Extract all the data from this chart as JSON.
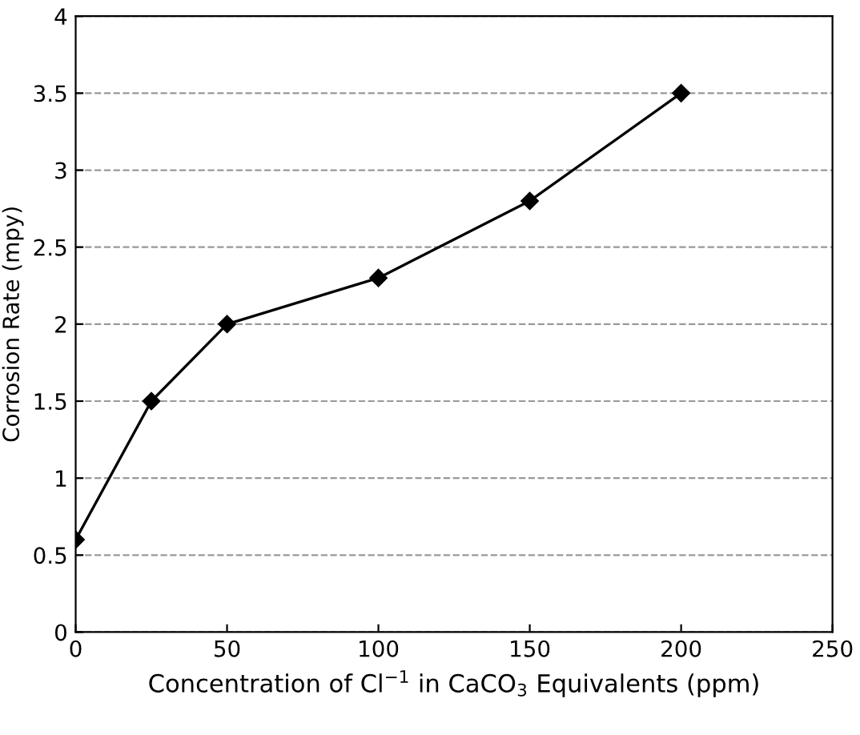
{
  "chart_data": {
    "type": "line",
    "xlabel": "Concentration of Cl$^{−1}$ in CaCO$_{3}$ Equivalents (ppm)",
    "ylabel": "Corrosion Rate (mpy)",
    "x": [
      0,
      25,
      50,
      100,
      150,
      200
    ],
    "series": [
      {
        "color": "#000000",
        "values": [
          0.6,
          1.5,
          2.0,
          2.3,
          2.8,
          3.5
        ]
      }
    ],
    "xlim": [
      0,
      250
    ],
    "xticks": [
      0,
      50,
      100,
      150,
      200,
      250
    ],
    "ylim": [
      0,
      4
    ],
    "yticks": [
      0,
      {
        "value": 0.5,
        "label": "0.5"
      },
      1,
      {
        "value": 1.5,
        "label": "1.5"
      },
      2,
      {
        "value": 2.5,
        "label": "2.5"
      },
      3,
      {
        "value": 3.5,
        "label": "3.5"
      },
      4
    ],
    "grid": "y",
    "marker": "diamond",
    "line_style": "solid",
    "legend": false
  }
}
